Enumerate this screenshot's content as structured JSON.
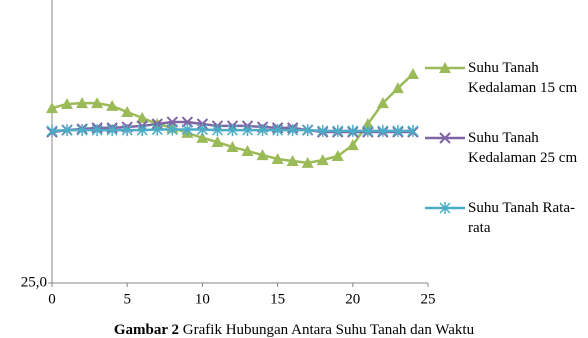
{
  "chart_data": {
    "type": "line",
    "x": [
      0,
      1,
      2,
      3,
      4,
      5,
      6,
      7,
      8,
      9,
      10,
      11,
      12,
      13,
      14,
      15,
      16,
      17,
      18,
      19,
      20,
      21,
      22,
      23,
      24
    ],
    "xlim": [
      0,
      25
    ],
    "xticks": [
      0,
      5,
      10,
      15,
      20,
      25
    ],
    "ylim": [
      25,
      35
    ],
    "yticks": [
      {
        "value": 25,
        "label": "25,0"
      }
    ],
    "series": [
      {
        "name": "Suhu Tanah Kedalaman 15 cm",
        "color": "#9bbb59",
        "marker": "triangle",
        "values": [
          31.29,
          31.44,
          31.47,
          31.47,
          31.37,
          31.15,
          30.94,
          30.72,
          30.58,
          30.4,
          30.22,
          30.07,
          29.89,
          29.75,
          29.6,
          29.46,
          29.39,
          29.32,
          29.42,
          29.57,
          29.96,
          30.72,
          31.47,
          32.01,
          32.52
        ]
      },
      {
        "name": "Suhu Tanah Kedalaman 25 cm",
        "color": "#8064a2",
        "marker": "x",
        "values": [
          30.43,
          30.5,
          30.54,
          30.58,
          30.58,
          30.61,
          30.65,
          30.72,
          30.79,
          30.79,
          30.72,
          30.65,
          30.65,
          30.65,
          30.61,
          30.58,
          30.58,
          30.5,
          30.43,
          30.43,
          30.43,
          30.43,
          30.43,
          30.43,
          30.43
        ]
      },
      {
        "name": "Suhu Tanah Rata-rata",
        "color": "#4bacc6",
        "marker": "asterisk",
        "values": [
          30.47,
          30.5,
          30.5,
          30.5,
          30.5,
          30.5,
          30.5,
          30.52,
          30.52,
          30.52,
          30.52,
          30.5,
          30.5,
          30.5,
          30.5,
          30.5,
          30.5,
          30.5,
          30.47,
          30.47,
          30.47,
          30.47,
          30.47,
          30.47,
          30.47
        ]
      }
    ],
    "caption_label": "Gambar 2",
    "caption_text": "Grafik Hubungan Antara Suhu Tanah dan Waktu"
  }
}
